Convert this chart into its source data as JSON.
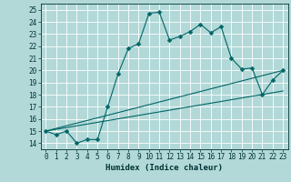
{
  "title": "",
  "xlabel": "Humidex (Indice chaleur)",
  "ylabel": "",
  "bg_color": "#b2d8d8",
  "grid_color": "#ffffff",
  "line_color": "#006666",
  "xlim": [
    -0.5,
    23.5
  ],
  "ylim": [
    13.5,
    25.5
  ],
  "xticks": [
    0,
    1,
    2,
    3,
    4,
    5,
    6,
    7,
    8,
    9,
    10,
    11,
    12,
    13,
    14,
    15,
    16,
    17,
    18,
    19,
    20,
    21,
    22,
    23
  ],
  "yticks": [
    14,
    15,
    16,
    17,
    18,
    19,
    20,
    21,
    22,
    23,
    24,
    25
  ],
  "line1_x": [
    0,
    1,
    2,
    3,
    4,
    5,
    6,
    7,
    8,
    9,
    10,
    11,
    12,
    13,
    14,
    15,
    16,
    17,
    18,
    19,
    20,
    21,
    22,
    23
  ],
  "line1_y": [
    15.0,
    14.7,
    15.0,
    14.0,
    14.3,
    14.3,
    17.0,
    19.7,
    21.8,
    22.2,
    24.7,
    24.8,
    22.5,
    22.8,
    23.2,
    23.8,
    23.1,
    23.6,
    21.0,
    20.1,
    20.2,
    18.0,
    19.2,
    20.0
  ],
  "line2_x": [
    0,
    23
  ],
  "line2_y": [
    15.0,
    20.0
  ],
  "line3_x": [
    0,
    23
  ],
  "line3_y": [
    15.0,
    18.3
  ],
  "tick_fontsize": 5.5,
  "xlabel_fontsize": 6.5,
  "marker_size": 2.5,
  "linewidth": 0.8
}
